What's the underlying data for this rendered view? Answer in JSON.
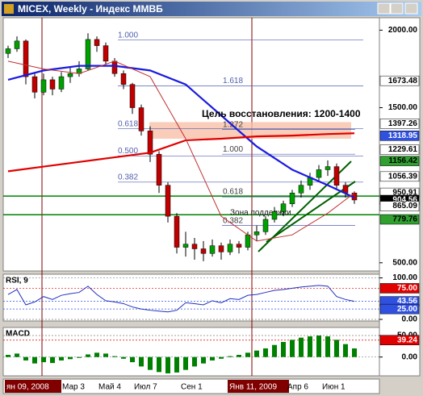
{
  "window": {
    "title": "MICEX, Weekly - Индекс ММВБ"
  },
  "chart_data": {
    "type": "candlestick",
    "ylim": [
      447,
      2080
    ],
    "candles": [
      [
        1850,
        1900,
        1820,
        1880
      ],
      [
        1880,
        1960,
        1860,
        1930
      ],
      [
        1930,
        1940,
        1650,
        1700
      ],
      [
        1700,
        1720,
        1560,
        1600
      ],
      [
        1600,
        1720,
        1580,
        1680
      ],
      [
        1680,
        1700,
        1580,
        1620
      ],
      [
        1620,
        1730,
        1600,
        1700
      ],
      [
        1700,
        1760,
        1660,
        1720
      ],
      [
        1720,
        1800,
        1700,
        1750
      ],
      [
        1750,
        1980,
        1740,
        1940
      ],
      [
        1940,
        1960,
        1860,
        1900
      ],
      [
        1900,
        1920,
        1780,
        1800
      ],
      [
        1800,
        1820,
        1700,
        1720
      ],
      [
        1720,
        1740,
        1620,
        1650
      ],
      [
        1650,
        1660,
        1460,
        1500
      ],
      [
        1500,
        1520,
        1320,
        1350
      ],
      [
        1350,
        1380,
        1150,
        1200
      ],
      [
        1200,
        1220,
        950,
        1000
      ],
      [
        1000,
        1020,
        760,
        800
      ],
      [
        800,
        820,
        560,
        600
      ],
      [
        600,
        700,
        540,
        620
      ],
      [
        620,
        660,
        520,
        590
      ],
      [
        590,
        640,
        510,
        560
      ],
      [
        560,
        650,
        540,
        610
      ],
      [
        610,
        630,
        520,
        570
      ],
      [
        570,
        650,
        550,
        620
      ],
      [
        620,
        640,
        560,
        600
      ],
      [
        600,
        700,
        580,
        680
      ],
      [
        680,
        740,
        640,
        700
      ],
      [
        700,
        800,
        680,
        780
      ],
      [
        780,
        860,
        760,
        830
      ],
      [
        830,
        900,
        800,
        880
      ],
      [
        880,
        970,
        860,
        950
      ],
      [
        950,
        1030,
        920,
        1000
      ],
      [
        1000,
        1080,
        970,
        1050
      ],
      [
        1050,
        1130,
        1020,
        1100
      ],
      [
        1100,
        1160,
        1060,
        1120
      ],
      [
        1120,
        1140,
        980,
        1000
      ],
      [
        1000,
        1020,
        920,
        950
      ],
      [
        950,
        960,
        880,
        905
      ]
    ],
    "up_color": "#00a000",
    "down_color": "#c00000",
    "lines": [
      {
        "color": "#1a1ae0",
        "width": 2.2,
        "x": [
          0,
          4,
          8,
          12,
          16,
          20,
          24,
          28,
          32,
          36,
          39
        ],
        "values": [
          1680,
          1740,
          1770,
          1770,
          1740,
          1650,
          1450,
          1250,
          1100,
          1000,
          920
        ]
      },
      {
        "color": "#e00000",
        "width": 2.2,
        "x": [
          0,
          4,
          8,
          12,
          16,
          20,
          24,
          28,
          32,
          36,
          39
        ],
        "values": [
          1090,
          1120,
          1150,
          1180,
          1210,
          1290,
          1300,
          1315,
          1320,
          1330,
          1335
        ]
      },
      {
        "color": "#c03030",
        "width": 1,
        "x": [
          0,
          4,
          8,
          12,
          16,
          20,
          24,
          28,
          32,
          36,
          39
        ],
        "values": [
          1800,
          1750,
          1720,
          1800,
          1700,
          1300,
          800,
          640,
          680,
          820,
          950
        ]
      }
    ],
    "zone": {
      "low": 1300,
      "high": 1407,
      "color": "#f7c1a8"
    },
    "annotation": "Цель восстановления: 1200-1400",
    "support": "Зона поддержки",
    "fib_left": [
      {
        "label": "1.000",
        "value": 1936
      },
      {
        "label": "1.618",
        "value": 1640
      },
      {
        "label": "0.618",
        "value": 1364
      },
      {
        "label": "0.500",
        "value": 1189
      },
      {
        "label": "0.382",
        "value": 1020
      }
    ],
    "fib_right": [
      {
        "label": "1.272",
        "value": 1359
      },
      {
        "label": "1.000",
        "value": 1200
      },
      {
        "label": "0.618",
        "value": 925
      },
      {
        "label": "0.382",
        "value": 740
      }
    ],
    "green_levels": [
      930,
      810
    ],
    "price_labels": [
      {
        "value": 2000,
        "label": "2000.00"
      },
      {
        "value": 1673.48,
        "label": "1673.48",
        "box": "#ffffff"
      },
      {
        "value": 1500,
        "label": "1500.00"
      },
      {
        "value": 1397.26,
        "label": "1397.26",
        "box": "#ffffff"
      },
      {
        "value": 1318.95,
        "label": "1318.95",
        "box": "#3050e0",
        "fg": "#ffffff"
      },
      {
        "value": 1229.61,
        "label": "1229.61",
        "box": "#ffffff"
      },
      {
        "value": 1156.42,
        "label": "1156.42",
        "box": "#30a030"
      },
      {
        "value": 1056.39,
        "label": "1056.39",
        "box": "#ffffff"
      },
      {
        "value": 950.91,
        "label": "950.91",
        "box": "#ffffff"
      },
      {
        "value": 904.56,
        "label": "904.56",
        "box": "#000000",
        "fg": "#ffffff"
      },
      {
        "value": 865.09,
        "label": "865.09",
        "box": "#ffffff"
      },
      {
        "value": 779.76,
        "label": "779.76",
        "box": "#30a030"
      },
      {
        "value": 500,
        "label": "500.00"
      }
    ],
    "time_labels": [
      "ян 09, 2008",
      "Мар 3",
      "Май 4",
      "Июл 7",
      "Сен 1",
      "Янв 11, 2009",
      "Апр 6",
      "Июн 1"
    ]
  },
  "rsi": {
    "title": "RSI, 9",
    "ylim": [
      0,
      105
    ],
    "color": "#2030c0",
    "values": [
      60,
      72,
      35,
      42,
      55,
      48,
      58,
      62,
      65,
      80,
      60,
      45,
      42,
      38,
      30,
      25,
      22,
      20,
      18,
      22,
      40,
      38,
      35,
      45,
      40,
      50,
      48,
      58,
      60,
      65,
      70,
      72,
      75,
      78,
      80,
      82,
      80,
      55,
      48,
      43.56
    ],
    "ticks": [
      {
        "value": 100,
        "label": "100.00"
      },
      {
        "value": 75,
        "label": "75.00",
        "box": "#e00000",
        "fg": "#ffffff"
      },
      {
        "value": 43.56,
        "label": "43.56",
        "box": "#3050e0",
        "fg": "#ffffff"
      },
      {
        "value": 25,
        "label": "25.00",
        "box": "#3050e0",
        "fg": "#ffffff"
      },
      {
        "value": 0,
        "label": "0.00"
      }
    ]
  },
  "macd": {
    "title": "MACD",
    "ylim": [
      -40,
      65
    ],
    "color": "#008000",
    "histogram": [
      5,
      8,
      -8,
      -15,
      -12,
      -14,
      -8,
      -5,
      -2,
      6,
      10,
      8,
      2,
      -4,
      -12,
      -22,
      -30,
      -35,
      -38,
      -36,
      -30,
      -22,
      -15,
      -8,
      -4,
      2,
      5,
      10,
      15,
      20,
      28,
      35,
      40,
      45,
      48,
      50,
      48,
      40,
      30,
      20
    ],
    "ticks": [
      {
        "value": 50,
        "label": "50.00"
      },
      {
        "value": 39.24,
        "label": "39.24",
        "box": "#e00000",
        "fg": "#ffffff"
      },
      {
        "value": 0,
        "label": "0.00"
      }
    ]
  }
}
